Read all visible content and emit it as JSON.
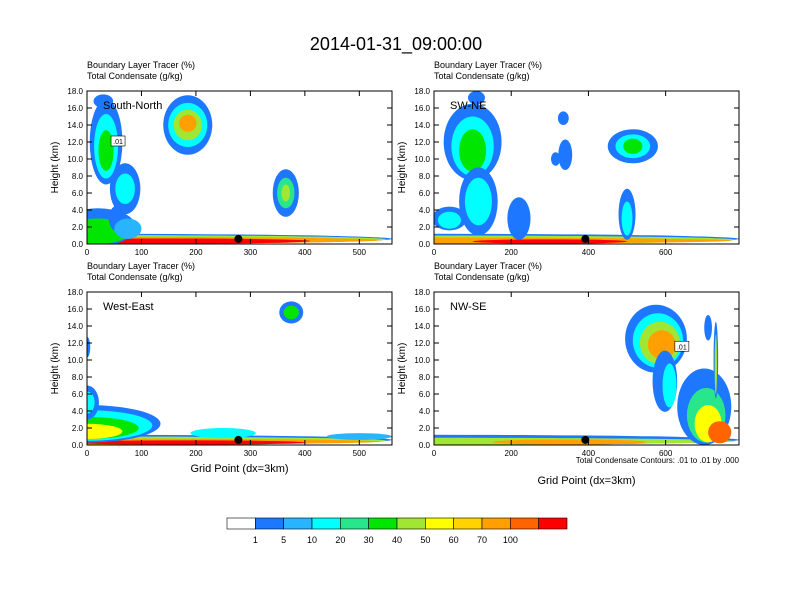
{
  "title": "2014-01-31_09:00:00",
  "field_label_1": "Boundary Layer Tracer   (%)",
  "field_label_2": "Total Condensate   (g/kg)",
  "contour_note": "Total Condensate Contours: .01 to .01 by .000",
  "colors": {
    "levels": [
      "#ffffff",
      "#1e78ff",
      "#28b4ff",
      "#00ffff",
      "#28e68c",
      "#00e600",
      "#a0e632",
      "#ffff00",
      "#ffd200",
      "#ffa000",
      "#ff6400",
      "#ff0000"
    ],
    "marker": "#000000"
  },
  "chart_data": [
    {
      "type": "heatmap",
      "panel_label": "South-North",
      "ylabel": "Height (km)",
      "xlabel": "",
      "xlim": [
        0,
        560
      ],
      "ylim": [
        0,
        18
      ],
      "xticks": [
        "0",
        "100",
        "200",
        "300",
        "400",
        "500"
      ],
      "xtick_values": [
        0,
        100,
        200,
        300,
        400,
        500
      ],
      "yticks": [
        "0.0",
        "2.0",
        "4.0",
        "6.0",
        "8.0",
        "10.0",
        "12.0",
        "14.0",
        "16.0",
        "18.0"
      ],
      "marker": {
        "x": 278,
        "y": 0.6
      },
      "contour_labels": [
        {
          "text": ".01",
          "x": 57,
          "y": 12.0
        }
      ],
      "blobs": [
        {
          "x": 0,
          "y": 0.6,
          "rx": 560,
          "ry": 0.6,
          "lvl": 1
        },
        {
          "x": 0,
          "y": 0.55,
          "rx": 550,
          "ry": 0.5,
          "lvl": 6
        },
        {
          "x": 0,
          "y": 0.45,
          "rx": 540,
          "ry": 0.4,
          "lvl": 9
        },
        {
          "x": 150,
          "y": 0.35,
          "rx": 260,
          "ry": 0.3,
          "lvl": 11
        },
        {
          "x": 20,
          "y": 2.0,
          "rx": 70,
          "ry": 2.2,
          "lvl": 1
        },
        {
          "x": 20,
          "y": 1.5,
          "rx": 60,
          "ry": 1.5,
          "lvl": 5
        },
        {
          "x": 35,
          "y": 12.0,
          "rx": 30,
          "ry": 5.0,
          "lvl": 1
        },
        {
          "x": 35,
          "y": 11.5,
          "rx": 22,
          "ry": 3.8,
          "lvl": 3
        },
        {
          "x": 35,
          "y": 11.0,
          "rx": 14,
          "ry": 2.4,
          "lvl": 5
        },
        {
          "x": 70,
          "y": 6.5,
          "rx": 28,
          "ry": 3.0,
          "lvl": 1
        },
        {
          "x": 70,
          "y": 6.5,
          "rx": 18,
          "ry": 1.8,
          "lvl": 3
        },
        {
          "x": 55,
          "y": 3.0,
          "rx": 15,
          "ry": 1.5,
          "lvl": 1
        },
        {
          "x": 75,
          "y": 1.8,
          "rx": 25,
          "ry": 1.2,
          "lvl": 2
        },
        {
          "x": 185,
          "y": 14.0,
          "rx": 45,
          "ry": 3.5,
          "lvl": 1
        },
        {
          "x": 185,
          "y": 14.0,
          "rx": 36,
          "ry": 2.6,
          "lvl": 3
        },
        {
          "x": 185,
          "y": 14.0,
          "rx": 26,
          "ry": 1.8,
          "lvl": 6
        },
        {
          "x": 185,
          "y": 14.2,
          "rx": 16,
          "ry": 1.0,
          "lvl": 9
        },
        {
          "x": 365,
          "y": 6.0,
          "rx": 24,
          "ry": 2.8,
          "lvl": 1
        },
        {
          "x": 365,
          "y": 6.0,
          "rx": 16,
          "ry": 1.8,
          "lvl": 4
        },
        {
          "x": 365,
          "y": 6.0,
          "rx": 8,
          "ry": 1.0,
          "lvl": 6
        },
        {
          "x": 30,
          "y": 16.8,
          "rx": 18,
          "ry": 0.8,
          "lvl": 1
        }
      ]
    },
    {
      "type": "heatmap",
      "panel_label": "SW-NE",
      "ylabel": "Height (km)",
      "xlabel": "",
      "xlim": [
        0,
        790
      ],
      "ylim": [
        0,
        18
      ],
      "xticks": [
        "0",
        "200",
        "400",
        "600"
      ],
      "xtick_values": [
        0,
        200,
        400,
        600
      ],
      "yticks": [
        "0.0",
        "2.0",
        "4.0",
        "6.0",
        "8.0",
        "10.0",
        "12.0",
        "14.0",
        "16.0",
        "18.0"
      ],
      "marker": {
        "x": 392,
        "y": 0.6
      },
      "contour_labels": [],
      "blobs": [
        {
          "x": 0,
          "y": 0.6,
          "rx": 790,
          "ry": 0.6,
          "lvl": 1
        },
        {
          "x": 0,
          "y": 0.5,
          "rx": 780,
          "ry": 0.5,
          "lvl": 6
        },
        {
          "x": 0,
          "y": 0.4,
          "rx": 770,
          "ry": 0.35,
          "lvl": 9
        },
        {
          "x": 300,
          "y": 0.3,
          "rx": 200,
          "ry": 0.25,
          "lvl": 11
        },
        {
          "x": 100,
          "y": 12.0,
          "rx": 75,
          "ry": 4.5,
          "lvl": 1
        },
        {
          "x": 100,
          "y": 11.5,
          "rx": 55,
          "ry": 3.5,
          "lvl": 3
        },
        {
          "x": 100,
          "y": 11.0,
          "rx": 35,
          "ry": 2.5,
          "lvl": 5
        },
        {
          "x": 115,
          "y": 5.0,
          "rx": 50,
          "ry": 4.0,
          "lvl": 1
        },
        {
          "x": 115,
          "y": 5.0,
          "rx": 35,
          "ry": 2.8,
          "lvl": 3
        },
        {
          "x": 220,
          "y": 3.0,
          "rx": 30,
          "ry": 2.5,
          "lvl": 1
        },
        {
          "x": 40,
          "y": 3.0,
          "rx": 45,
          "ry": 1.4,
          "lvl": 1
        },
        {
          "x": 40,
          "y": 2.8,
          "rx": 30,
          "ry": 1.0,
          "lvl": 3
        },
        {
          "x": 515,
          "y": 11.5,
          "rx": 65,
          "ry": 2.0,
          "lvl": 1
        },
        {
          "x": 515,
          "y": 11.5,
          "rx": 45,
          "ry": 1.4,
          "lvl": 3
        },
        {
          "x": 515,
          "y": 11.5,
          "rx": 25,
          "ry": 0.9,
          "lvl": 5
        },
        {
          "x": 500,
          "y": 3.5,
          "rx": 22,
          "ry": 3.0,
          "lvl": 1
        },
        {
          "x": 500,
          "y": 3.0,
          "rx": 14,
          "ry": 2.0,
          "lvl": 3
        },
        {
          "x": 340,
          "y": 10.5,
          "rx": 18,
          "ry": 1.8,
          "lvl": 1
        },
        {
          "x": 315,
          "y": 10.0,
          "rx": 12,
          "ry": 0.8,
          "lvl": 1
        },
        {
          "x": 335,
          "y": 14.8,
          "rx": 14,
          "ry": 0.8,
          "lvl": 1
        },
        {
          "x": 110,
          "y": 17.2,
          "rx": 22,
          "ry": 0.8,
          "lvl": 1
        }
      ]
    },
    {
      "type": "heatmap",
      "panel_label": "West-East",
      "ylabel": "Height (km)",
      "xlabel": "Grid Point (dx=3km)",
      "xlim": [
        0,
        560
      ],
      "ylim": [
        0,
        18
      ],
      "xticks": [
        "0",
        "100",
        "200",
        "300",
        "400",
        "500"
      ],
      "xtick_values": [
        0,
        100,
        200,
        300,
        400,
        500
      ],
      "yticks": [
        "0.0",
        "2.0",
        "4.0",
        "6.0",
        "8.0",
        "10.0",
        "12.0",
        "14.0",
        "16.0",
        "18.0"
      ],
      "marker": {
        "x": 278,
        "y": 0.6
      },
      "contour_labels": [],
      "blobs": [
        {
          "x": 0,
          "y": 0.6,
          "rx": 560,
          "ry": 0.6,
          "lvl": 1
        },
        {
          "x": 0,
          "y": 0.5,
          "rx": 550,
          "ry": 0.5,
          "lvl": 6
        },
        {
          "x": 0,
          "y": 0.4,
          "rx": 540,
          "ry": 0.35,
          "lvl": 9
        },
        {
          "x": 180,
          "y": 0.3,
          "rx": 220,
          "ry": 0.25,
          "lvl": 11
        },
        {
          "x": 0,
          "y": 2.5,
          "rx": 135,
          "ry": 2.2,
          "lvl": 1
        },
        {
          "x": 0,
          "y": 2.3,
          "rx": 120,
          "ry": 1.8,
          "lvl": 3
        },
        {
          "x": 0,
          "y": 2.0,
          "rx": 95,
          "ry": 1.3,
          "lvl": 5
        },
        {
          "x": 0,
          "y": 1.6,
          "rx": 65,
          "ry": 0.9,
          "lvl": 7
        },
        {
          "x": 0,
          "y": 5.0,
          "rx": 22,
          "ry": 2.0,
          "lvl": 1
        },
        {
          "x": 0,
          "y": 5.0,
          "rx": 14,
          "ry": 1.3,
          "lvl": 3
        },
        {
          "x": 0,
          "y": 11.5,
          "rx": 6,
          "ry": 1.2,
          "lvl": 1
        },
        {
          "x": 250,
          "y": 1.4,
          "rx": 60,
          "ry": 0.6,
          "lvl": 3
        },
        {
          "x": 375,
          "y": 15.6,
          "rx": 22,
          "ry": 1.3,
          "lvl": 1
        },
        {
          "x": 375,
          "y": 15.6,
          "rx": 14,
          "ry": 0.8,
          "lvl": 5
        },
        {
          "x": 500,
          "y": 1.0,
          "rx": 60,
          "ry": 0.4,
          "lvl": 2
        }
      ]
    },
    {
      "type": "heatmap",
      "panel_label": "NW-SE",
      "ylabel": "Height (km)",
      "xlabel": "Grid Point (dx=3km)",
      "xlim": [
        0,
        790
      ],
      "ylim": [
        0,
        18
      ],
      "xticks": [
        "0",
        "200",
        "400",
        "600"
      ],
      "xtick_values": [
        0,
        200,
        400,
        600
      ],
      "yticks": [
        "0.0",
        "2.0",
        "4.0",
        "6.0",
        "8.0",
        "10.0",
        "12.0",
        "14.0",
        "16.0",
        "18.0"
      ],
      "marker": {
        "x": 392,
        "y": 0.6
      },
      "contour_labels": [
        {
          "text": ".01",
          "x": 642,
          "y": 11.5
        }
      ],
      "blobs": [
        {
          "x": 0,
          "y": 0.6,
          "rx": 790,
          "ry": 0.6,
          "lvl": 1
        },
        {
          "x": 0,
          "y": 0.45,
          "rx": 780,
          "ry": 0.4,
          "lvl": 6
        },
        {
          "x": 350,
          "y": 0.35,
          "rx": 200,
          "ry": 0.3,
          "lvl": 9
        },
        {
          "x": 575,
          "y": 12.5,
          "rx": 80,
          "ry": 4.0,
          "lvl": 1
        },
        {
          "x": 580,
          "y": 12.3,
          "rx": 65,
          "ry": 3.2,
          "lvl": 3
        },
        {
          "x": 585,
          "y": 12.0,
          "rx": 52,
          "ry": 2.5,
          "lvl": 6
        },
        {
          "x": 590,
          "y": 11.8,
          "rx": 36,
          "ry": 1.7,
          "lvl": 9
        },
        {
          "x": 598,
          "y": 7.5,
          "rx": 32,
          "ry": 3.6,
          "lvl": 1
        },
        {
          "x": 610,
          "y": 7.0,
          "rx": 18,
          "ry": 2.6,
          "lvl": 3
        },
        {
          "x": 700,
          "y": 4.5,
          "rx": 70,
          "ry": 4.5,
          "lvl": 1
        },
        {
          "x": 705,
          "y": 3.5,
          "rx": 50,
          "ry": 3.2,
          "lvl": 4
        },
        {
          "x": 710,
          "y": 2.5,
          "rx": 35,
          "ry": 2.2,
          "lvl": 7
        },
        {
          "x": 740,
          "y": 1.5,
          "rx": 30,
          "ry": 1.3,
          "lvl": 10
        },
        {
          "x": 730,
          "y": 10.0,
          "rx": 6,
          "ry": 4.5,
          "lvl": 1
        },
        {
          "x": 730,
          "y": 9.5,
          "rx": 3,
          "ry": 3.5,
          "lvl": 6
        },
        {
          "x": 710,
          "y": 13.8,
          "rx": 10,
          "ry": 1.5,
          "lvl": 1
        }
      ]
    }
  ],
  "legend": {
    "labels": [
      "1",
      "5",
      "10",
      "20",
      "30",
      "40",
      "50",
      "60",
      "70",
      "100"
    ]
  }
}
